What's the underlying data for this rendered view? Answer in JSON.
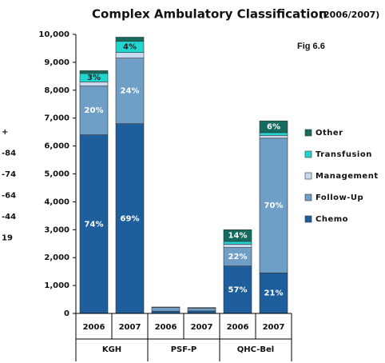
{
  "chart_data": {
    "type": "stacked_bar",
    "title": "Complex Ambulatory Classification",
    "subtitle": "(2006/2007)",
    "annotation": "Fig 6.6",
    "side_fragments": [
      "+",
      "-84",
      "-74",
      "-64",
      "-44",
      "19"
    ],
    "categories": [
      "2006",
      "2007",
      "2006",
      "2007",
      "2006",
      "2007"
    ],
    "groups": [
      "KGH",
      "PSF-P",
      "QHC-Bel"
    ],
    "series": [
      {
        "name": "Chemo",
        "color": "#1f5e9c",
        "values": [
          6400,
          6800,
          80,
          90,
          1700,
          1450
        ],
        "segment_labels": [
          "74%",
          "69%",
          null,
          null,
          "57%",
          "21%"
        ]
      },
      {
        "name": "Follow-Up",
        "color": "#6f9fc6",
        "values": [
          1750,
          2350,
          130,
          100,
          660,
          4830
        ],
        "segment_labels": [
          "20%",
          "24%",
          null,
          null,
          "22%",
          "70%"
        ]
      },
      {
        "name": "Management",
        "color": "#c8daf0",
        "values": [
          150,
          200,
          20,
          20,
          120,
          100
        ],
        "segment_labels": [
          null,
          null,
          null,
          null,
          null,
          null
        ]
      },
      {
        "name": "Transfusion",
        "color": "#20d6d0",
        "values": [
          300,
          400,
          0,
          0,
          100,
          100
        ],
        "segment_labels": [
          "3%",
          "4%",
          null,
          null,
          null,
          null
        ]
      },
      {
        "name": "Other",
        "color": "#146b5e",
        "values": [
          100,
          150,
          0,
          0,
          420,
          420
        ],
        "segment_labels": [
          null,
          null,
          null,
          null,
          "14%",
          "6%"
        ]
      }
    ],
    "ylim": [
      0,
      10000
    ],
    "yticks": [
      0,
      {
        "value": 1000,
        "label": "1,000"
      },
      {
        "value": 2000,
        "label": "2,000"
      },
      {
        "value": 3000,
        "label": "3,000"
      },
      {
        "value": 4000,
        "label": "4,000"
      },
      {
        "value": 5000,
        "label": "5,000"
      },
      {
        "value": 6000,
        "label": "6,000"
      },
      {
        "value": 7000,
        "label": "7,000"
      },
      {
        "value": 8000,
        "label": "8,000"
      },
      {
        "value": 9000,
        "label": "9,000"
      },
      {
        "value": 10000,
        "label": "10,000"
      }
    ],
    "legend": "right"
  }
}
